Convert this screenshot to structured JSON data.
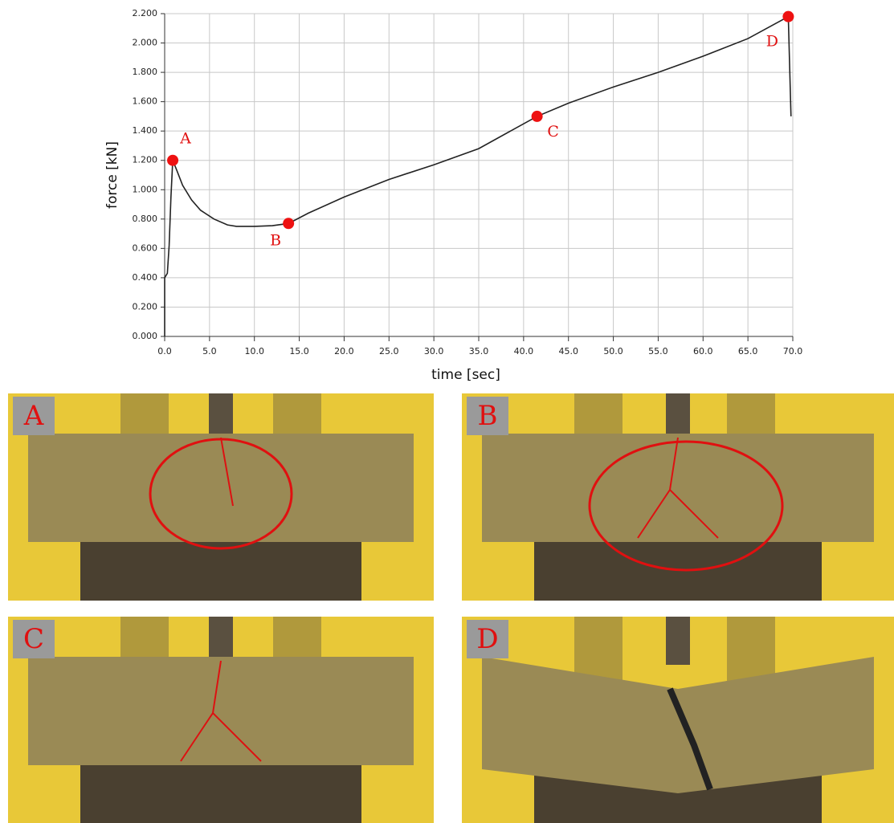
{
  "chart_data": {
    "type": "line",
    "xlabel": "time [sec]",
    "ylabel": "force [kN]",
    "xlim": [
      0,
      70
    ],
    "ylim": [
      0,
      2.2
    ],
    "xticks": [
      {
        "value": 0,
        "label": "0.0"
      },
      {
        "value": 5,
        "label": "5.0"
      },
      {
        "value": 10,
        "label": "10.0"
      },
      {
        "value": 15,
        "label": "15.0"
      },
      {
        "value": 20,
        "label": "20.0"
      },
      {
        "value": 25,
        "label": "25.0"
      },
      {
        "value": 30,
        "label": "30.0"
      },
      {
        "value": 35,
        "label": "35.0"
      },
      {
        "value": 40,
        "label": "40.0"
      },
      {
        "value": 45,
        "label": "45.0"
      },
      {
        "value": 50,
        "label": "50.0"
      },
      {
        "value": 55,
        "label": "55.0"
      },
      {
        "value": 60,
        "label": "60.0"
      },
      {
        "value": 65,
        "label": "65.0"
      },
      {
        "value": 70,
        "label": "70.0"
      }
    ],
    "yticks": [
      {
        "value": 0,
        "label": "0.000"
      },
      {
        "value": 0.2,
        "label": "0.200"
      },
      {
        "value": 0.4,
        "label": "0.400"
      },
      {
        "value": 0.6,
        "label": "0.600"
      },
      {
        "value": 0.8,
        "label": "0.800"
      },
      {
        "value": 1.0,
        "label": "1.000"
      },
      {
        "value": 1.2,
        "label": "1.200"
      },
      {
        "value": 1.4,
        "label": "1.400"
      },
      {
        "value": 1.6,
        "label": "1.600"
      },
      {
        "value": 1.8,
        "label": "1.800"
      },
      {
        "value": 2.0,
        "label": "2.000"
      },
      {
        "value": 2.2,
        "label": "2.200"
      }
    ],
    "grid": true,
    "series": [
      {
        "color": "#222222",
        "x": [
          0,
          0,
          0.3,
          0.5,
          0.7,
          0.9,
          1.3,
          2,
          3,
          4,
          5.5,
          7,
          8,
          10,
          12,
          13.8,
          16,
          20,
          25,
          30,
          35,
          41.5,
          45,
          50,
          55,
          60,
          65,
          69.5,
          69.8
        ],
        "values": [
          0,
          0.4,
          0.43,
          0.62,
          0.95,
          1.2,
          1.14,
          1.03,
          0.93,
          0.86,
          0.8,
          0.76,
          0.75,
          0.75,
          0.755,
          0.77,
          0.84,
          0.95,
          1.07,
          1.17,
          1.28,
          1.5,
          1.59,
          1.7,
          1.8,
          1.91,
          2.03,
          2.18,
          1.5
        ]
      }
    ],
    "annotations": [
      {
        "text": "A",
        "x": 0.9,
        "y": 1.2
      },
      {
        "text": "B",
        "x": 13.8,
        "y": 0.77
      },
      {
        "text": "C",
        "x": 41.5,
        "y": 1.5
      },
      {
        "text": "D",
        "x": 69.5,
        "y": 2.18
      }
    ],
    "marker_color": "#ee1111"
  },
  "photos": [
    {
      "label": "A"
    },
    {
      "label": "B"
    },
    {
      "label": "C"
    },
    {
      "label": "D"
    }
  ]
}
